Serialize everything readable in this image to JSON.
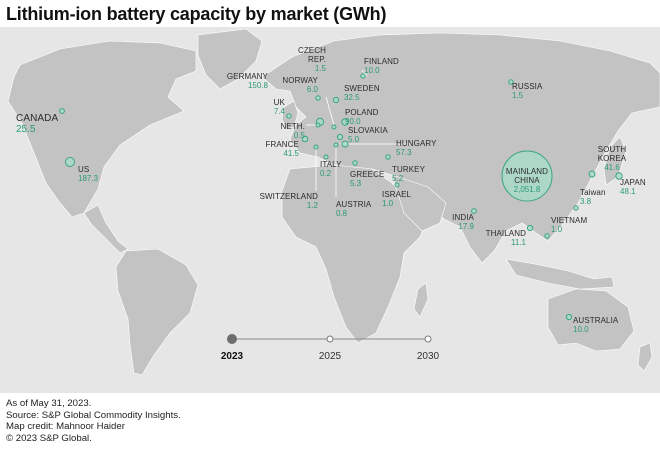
{
  "title": "Lithium-ion battery capacity by market (GWh)",
  "markets": [
    {
      "id": "canada",
      "name": "CANADA",
      "value": "25.5",
      "big": true
    },
    {
      "id": "us",
      "name": "US",
      "value": "187.3"
    },
    {
      "id": "germany",
      "name": "GERMANY",
      "value": "150.8"
    },
    {
      "id": "czech",
      "name": "CZECH REP.",
      "value": "1.5"
    },
    {
      "id": "finland",
      "name": "FINLAND",
      "value": "10.0"
    },
    {
      "id": "norway",
      "name": "NORWAY",
      "value": "6.0"
    },
    {
      "id": "sweden",
      "name": "SWEDEN",
      "value": "32.5"
    },
    {
      "id": "uk",
      "name": "UK",
      "value": "7.4"
    },
    {
      "id": "poland",
      "name": "POLAND",
      "value": "90.0"
    },
    {
      "id": "neth",
      "name": "NETH.",
      "value": "0.5"
    },
    {
      "id": "slovakia",
      "name": "SLOVAKIA",
      "value": "5.0"
    },
    {
      "id": "france",
      "name": "FRANCE",
      "value": "41.5"
    },
    {
      "id": "hungary",
      "name": "HUNGARY",
      "value": "57.3"
    },
    {
      "id": "italy",
      "name": "ITALY",
      "value": "0.2"
    },
    {
      "id": "switzerland",
      "name": "SWITZERLAND",
      "value": "1.2"
    },
    {
      "id": "austria",
      "name": "AUSTRIA",
      "value": "0.8"
    },
    {
      "id": "greece",
      "name": "GREECE",
      "value": "5.3"
    },
    {
      "id": "turkey",
      "name": "TURKEY",
      "value": "5.2"
    },
    {
      "id": "israel",
      "name": "ISRAEL",
      "value": "1.0"
    },
    {
      "id": "russia",
      "name": "RUSSIA",
      "value": "1.5"
    },
    {
      "id": "china",
      "name": "MAINLAND CHINA",
      "value": "2,051.8"
    },
    {
      "id": "south-korea",
      "name": "SOUTH KOREA",
      "value": "41.6"
    },
    {
      "id": "japan",
      "name": "JAPAN",
      "value": "48.1"
    },
    {
      "id": "taiwan",
      "name": "Taiwan",
      "value": "3.8"
    },
    {
      "id": "india",
      "name": "INDIA",
      "value": "17.9"
    },
    {
      "id": "vietnam",
      "name": "VIETNAM",
      "value": "1.0"
    },
    {
      "id": "thailand",
      "name": "THAILAND",
      "value": "11.1"
    },
    {
      "id": "australia",
      "name": "AUSTRALIA",
      "value": "10.0"
    }
  ],
  "timeline": {
    "years": [
      "2023",
      "2025",
      "2030"
    ],
    "active": "2023"
  },
  "footer": {
    "asof": "As of May 31, 2023.",
    "source": "Source: S&P Global Commodity Insights.",
    "credit": "Map credit: Mahnoor Haider",
    "copyright": "© 2023 S&P Global."
  },
  "colors": {
    "bubble_fill": "#a9dcc9",
    "bubble_stroke": "#3aa57f",
    "value_text": "#2a9a76",
    "land": "#c3c3c3",
    "ocean": "#e6e6e6"
  }
}
